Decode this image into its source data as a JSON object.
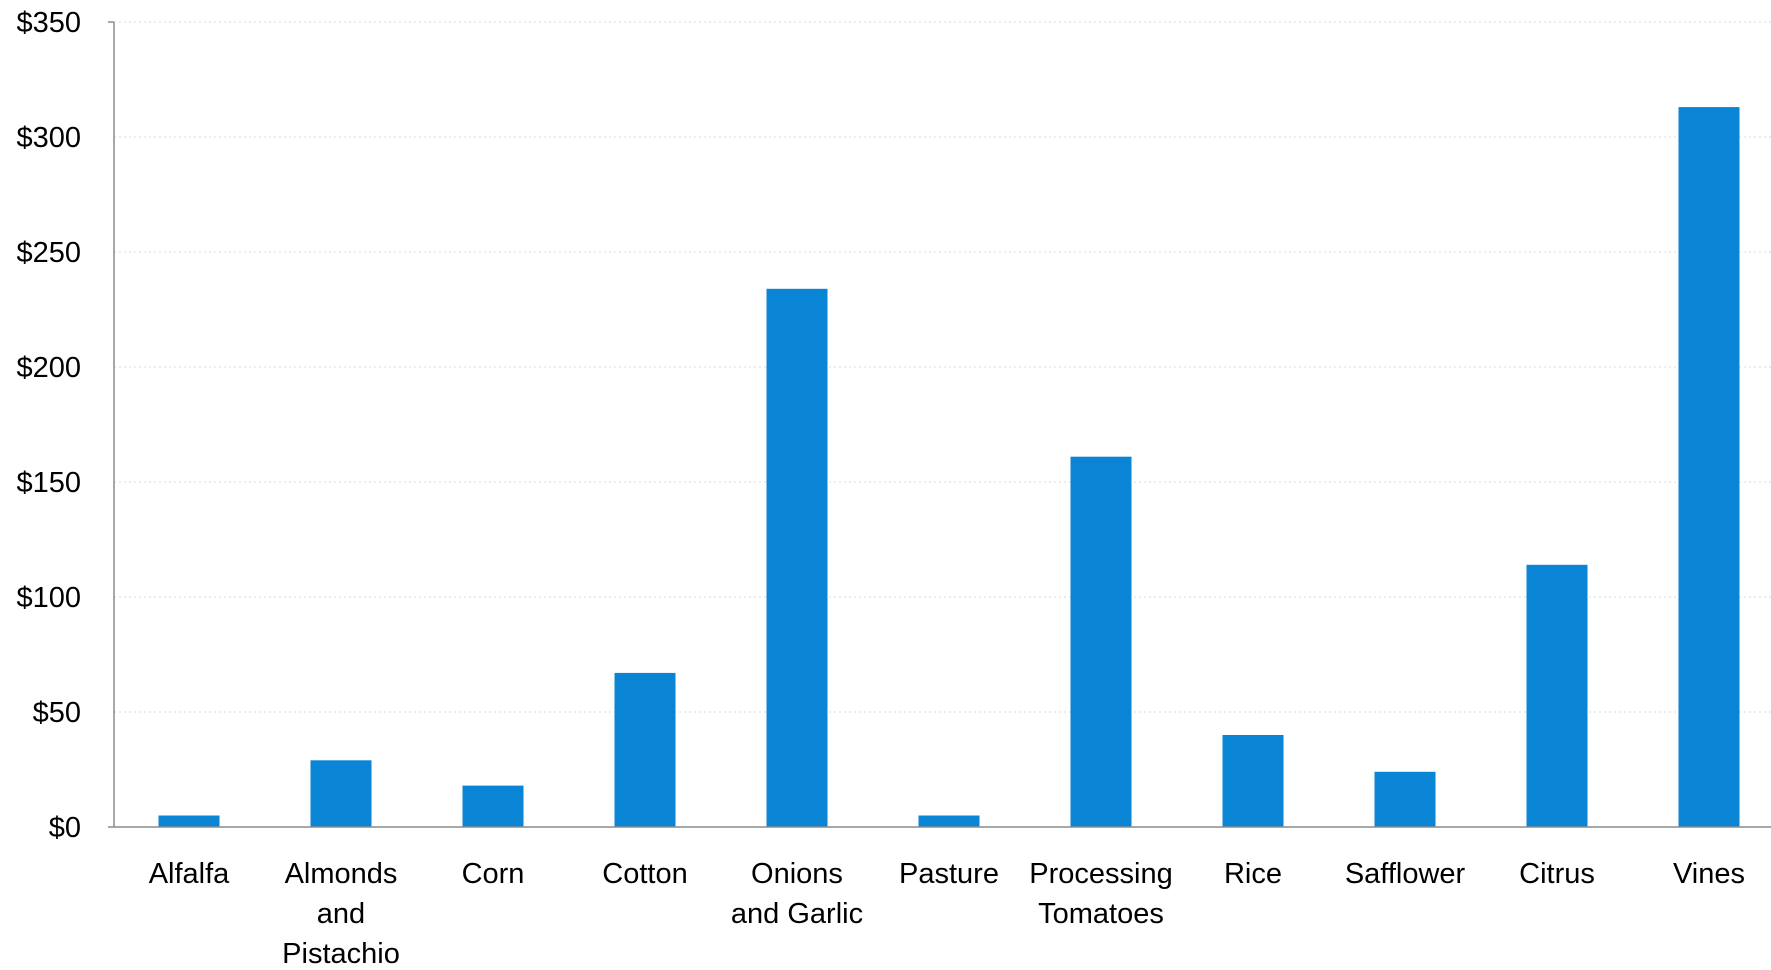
{
  "chart_data": {
    "type": "bar",
    "title": "",
    "xlabel": "",
    "ylabel": "",
    "ylim": [
      0,
      350
    ],
    "yticks": [
      0,
      50,
      100,
      150,
      200,
      250,
      300,
      350
    ],
    "ytick_labels": [
      "$0",
      "$50",
      "$100",
      "$150",
      "$200",
      "$250",
      "$300",
      "$350"
    ],
    "categories": [
      [
        "Alfalfa"
      ],
      [
        "Almonds",
        "and",
        "Pistachio"
      ],
      [
        "Corn"
      ],
      [
        "Cotton"
      ],
      [
        "Onions",
        "and Garlic"
      ],
      [
        "Pasture"
      ],
      [
        "Processing",
        "Tomatoes"
      ],
      [
        "Rice"
      ],
      [
        "Safflower"
      ],
      [
        "Citrus"
      ],
      [
        "Vines"
      ]
    ],
    "values": [
      5,
      29,
      18,
      67,
      234,
      5,
      161,
      40,
      24,
      114,
      313
    ],
    "bar_color": "#0a84d4",
    "grid": true,
    "legend": "none"
  }
}
